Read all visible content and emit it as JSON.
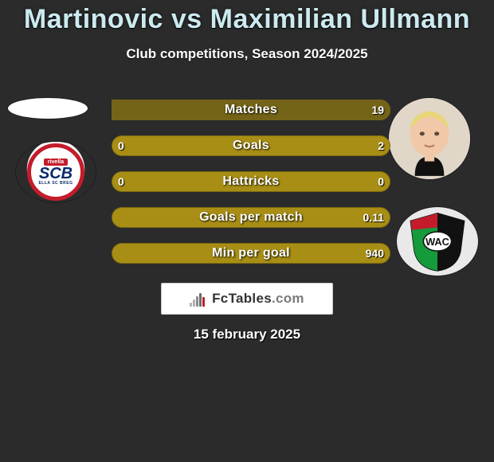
{
  "title": "Martinovic vs Maximilian Ullmann",
  "subtitle": "Club competitions, Season 2024/2025",
  "date": "15 february 2025",
  "fctables_label": "FcTables",
  "fctables_suffix": ".com",
  "colors": {
    "bar_bg": "#a88e14",
    "bar_fill": "#746417",
    "title": "#cceaf0",
    "bg": "#2b2b2b"
  },
  "bars": [
    {
      "label": "Matches",
      "left": "",
      "right": "19",
      "fill_left_pct": 0,
      "fill_right_pct": 100
    },
    {
      "label": "Goals",
      "left": "0",
      "right": "2",
      "fill_left_pct": 0,
      "fill_right_pct": 0
    },
    {
      "label": "Hattricks",
      "left": "0",
      "right": "0",
      "fill_left_pct": 0,
      "fill_right_pct": 0
    },
    {
      "label": "Goals per match",
      "left": "",
      "right": "0.11",
      "fill_left_pct": 0,
      "fill_right_pct": 0
    },
    {
      "label": "Min per goal",
      "left": "",
      "right": "940",
      "fill_left_pct": 0,
      "fill_right_pct": 0
    }
  ],
  "team_left": {
    "line1": "rivella",
    "line2": "SCB",
    "line3": "ELLA SC BREG"
  },
  "fct_bars": [
    {
      "x": 0,
      "h": 5,
      "c": "#b0b0b0"
    },
    {
      "x": 4,
      "h": 9,
      "c": "#b0b0b0"
    },
    {
      "x": 8,
      "h": 13,
      "c": "#8a8a8a"
    },
    {
      "x": 12,
      "h": 17,
      "c": "#6a6a6a"
    },
    {
      "x": 16,
      "h": 12,
      "c": "#c41c2b"
    }
  ]
}
